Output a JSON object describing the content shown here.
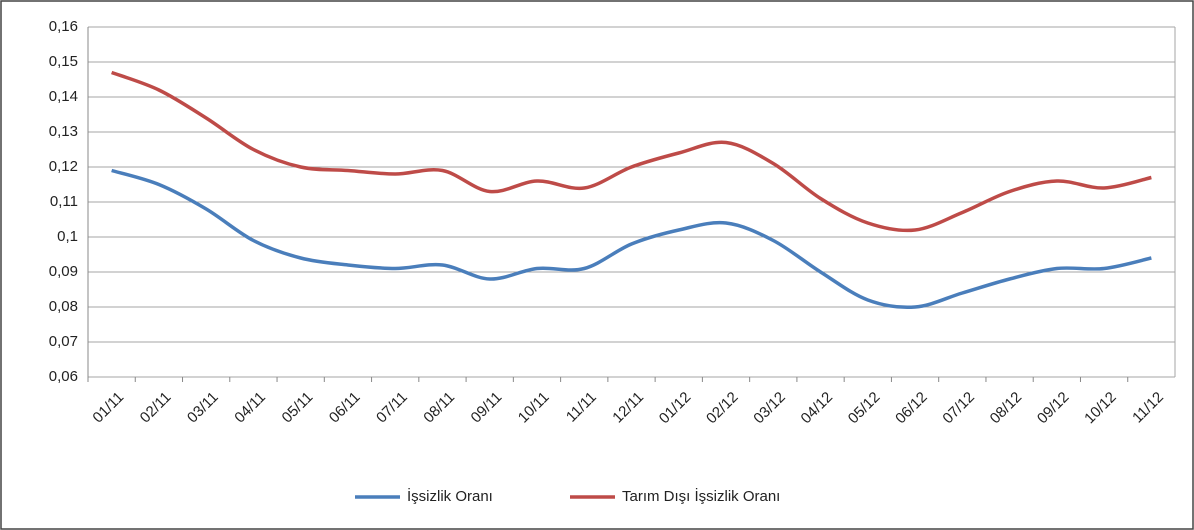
{
  "chart_data": {
    "type": "line",
    "categories": [
      "01/11",
      "02/11",
      "03/11",
      "04/11",
      "05/11",
      "06/11",
      "07/11",
      "08/11",
      "09/11",
      "10/11",
      "11/11",
      "12/11",
      "01/12",
      "02/12",
      "03/12",
      "04/12",
      "05/12",
      "06/12",
      "07/12",
      "08/12",
      "09/12",
      "10/12",
      "11/12"
    ],
    "series": [
      {
        "name": "İşsizlik Oranı",
        "color": "#4a7ebb",
        "values": [
          0.119,
          0.115,
          0.108,
          0.099,
          0.094,
          0.092,
          0.091,
          0.092,
          0.088,
          0.091,
          0.091,
          0.098,
          0.102,
          0.104,
          0.099,
          0.09,
          0.082,
          0.08,
          0.084,
          0.088,
          0.091,
          0.091,
          0.094
        ]
      },
      {
        "name": "Tarım Dışı İşsizlik Oranı",
        "color": "#be4b48",
        "values": [
          0.147,
          0.142,
          0.134,
          0.125,
          0.12,
          0.119,
          0.118,
          0.119,
          0.113,
          0.116,
          0.114,
          0.12,
          0.124,
          0.127,
          0.121,
          0.111,
          0.104,
          0.102,
          0.107,
          0.113,
          0.116,
          0.114,
          0.117
        ]
      }
    ],
    "ylim": [
      0.06,
      0.16
    ],
    "yticks": [
      {
        "value": 0.06,
        "label": "0,06"
      },
      {
        "value": 0.07,
        "label": "0,07"
      },
      {
        "value": 0.08,
        "label": "0,08"
      },
      {
        "value": 0.09,
        "label": "0,09"
      },
      {
        "value": 0.1,
        "label": "0,1"
      },
      {
        "value": 0.11,
        "label": "0,11"
      },
      {
        "value": 0.12,
        "label": "0,12"
      },
      {
        "value": 0.13,
        "label": "0,13"
      },
      {
        "value": 0.14,
        "label": "0,14"
      },
      {
        "value": 0.15,
        "label": "0,15"
      },
      {
        "value": 0.16,
        "label": "0,16"
      }
    ],
    "grid": true,
    "legend": "bottom"
  }
}
